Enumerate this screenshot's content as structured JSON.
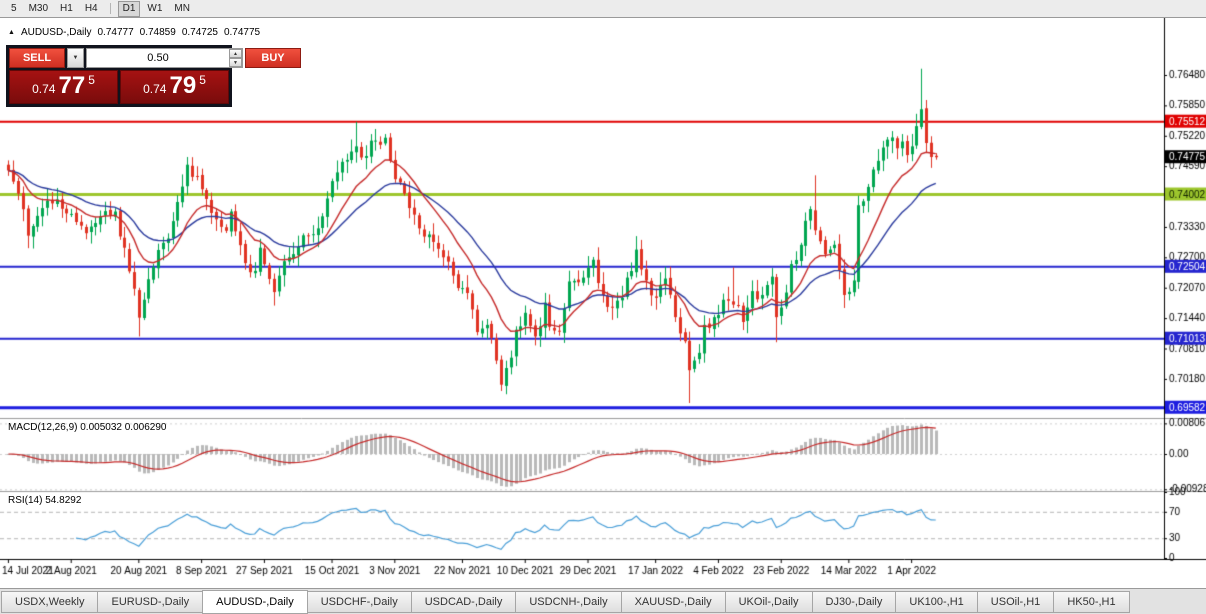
{
  "toolbar": {
    "timeframes": [
      "5",
      "M30",
      "H1",
      "H4",
      "D1",
      "W1",
      "MN"
    ],
    "active": "D1"
  },
  "header": {
    "symbol": "AUDUSD-,Daily",
    "open": "0.74777",
    "high": "0.74859",
    "low": "0.74725",
    "close": "0.74775"
  },
  "icons": {
    "title_marker": "▲",
    "dropdown_arrow": "▼",
    "spin_up": "▲",
    "spin_down": "▼"
  },
  "trade_panel": {
    "sell_label": "SELL",
    "buy_label": "BUY",
    "volume": "0.50",
    "sell_price_main": "0.74",
    "sell_price_big": "77",
    "sell_price_sup": "5",
    "buy_price_main": "0.74",
    "buy_price_big": "79",
    "buy_price_sup": "5"
  },
  "indicators": {
    "macd_label": "MACD(12,26,9) 0.005032 0.006290",
    "rsi_label": "RSI(14) 54.8292"
  },
  "axes": {
    "price_ticks": [
      "0.76480",
      "0.75850",
      "0.75220",
      "0.74590",
      "0.73960",
      "0.73330",
      "0.72700",
      "0.72070",
      "0.71440",
      "0.70810",
      "0.70180"
    ],
    "price_tick_top": 0.7648,
    "price_tick_step": 0.0063,
    "macd_ticks": [
      {
        "value": 0.00806,
        "label": "0.00806"
      },
      {
        "value": 0,
        "label": "0.00"
      },
      {
        "value": -0.00928,
        "label": "-0.00928"
      }
    ],
    "rsi_ticks": [
      {
        "value": 100,
        "label": "100"
      },
      {
        "value": 70,
        "label": "70"
      },
      {
        "value": 30,
        "label": "30"
      },
      {
        "value": 0,
        "label": "0"
      }
    ],
    "dates": [
      "14 Jul 2021",
      "2 Aug 2021",
      "20 Aug 2021",
      "8 Sep 2021",
      "27 Sep 2021",
      "15 Oct 2021",
      "3 Nov 2021",
      "22 Nov 2021",
      "10 Dec 2021",
      "29 Dec 2021",
      "17 Jan 2022",
      "4 Feb 2022",
      "23 Feb 2022",
      "14 Mar 2022",
      "1 Apr 2022"
    ]
  },
  "levels": [
    {
      "price": 0.75512,
      "label": "0.75512",
      "line_color": "#e00000",
      "badge_bg": "#e00000",
      "badge_fg": "#ffffff",
      "width": 2
    },
    {
      "price": 0.74002,
      "label": "0.74002",
      "line_color": "#9dc62d",
      "badge_bg": "#9dc62d",
      "badge_fg": "#102000",
      "width": 3
    },
    {
      "price": 0.72504,
      "label": "0.72504",
      "line_color": "#2525cf",
      "badge_bg": "#2525cf",
      "badge_fg": "#ffffff",
      "width": 2
    },
    {
      "price": 0.71013,
      "label": "0.71013",
      "line_color": "#2525cf",
      "badge_bg": "#2525cf",
      "badge_fg": "#ffffff",
      "width": 2
    },
    {
      "price": 0.69582,
      "label": "0.69582",
      "line_color": "#1d1de0",
      "badge_bg": "#1d1de0",
      "badge_fg": "#ffffff",
      "width": 3
    }
  ],
  "current_price": {
    "price": 0.74775,
    "label": "0.74775",
    "badge_bg": "#000000",
    "badge_fg": "#ffffff"
  },
  "colors": {
    "up": "#00a650",
    "down": "#e03323",
    "ma_fast": "#c62b2b",
    "ma_slow": "#2b3b9e",
    "macd_hist": "#b9b9b9",
    "macd_signal": "#c62b2b",
    "rsi_line": "#4a9fd8",
    "dashed_level": "#b5b5b5",
    "macd_grid": "#d0d0d0",
    "separator": "#9a9a9a",
    "frame": "#000000"
  },
  "chart_data": {
    "type": "candlestick",
    "title": "AUDUSD-,Daily",
    "symbol": "AUDUSD-",
    "timeframe": "Daily",
    "n_candles": 193,
    "price_min": 0.6939,
    "price_max": 0.7762,
    "noise": 0.0016,
    "seed": 11,
    "date_first_index": 0,
    "date_last_index": 187,
    "close_waypoints": [
      [
        0,
        0.745
      ],
      [
        2,
        0.7402
      ],
      [
        4,
        0.7315
      ],
      [
        7,
        0.7372
      ],
      [
        10,
        0.739
      ],
      [
        13,
        0.736
      ],
      [
        16,
        0.732
      ],
      [
        19,
        0.7355
      ],
      [
        22,
        0.7365
      ],
      [
        24,
        0.729
      ],
      [
        26,
        0.7205
      ],
      [
        27,
        0.7145
      ],
      [
        30,
        0.725
      ],
      [
        32,
        0.73
      ],
      [
        34,
        0.7345
      ],
      [
        37,
        0.7462
      ],
      [
        39,
        0.7438
      ],
      [
        42,
        0.7362
      ],
      [
        45,
        0.7325
      ],
      [
        46,
        0.7365
      ],
      [
        49,
        0.7258
      ],
      [
        51,
        0.7242
      ],
      [
        52,
        0.729
      ],
      [
        55,
        0.7198
      ],
      [
        56,
        0.7232
      ],
      [
        57,
        0.7262
      ],
      [
        60,
        0.7292
      ],
      [
        62,
        0.7315
      ],
      [
        65,
        0.7355
      ],
      [
        67,
        0.7428
      ],
      [
        70,
        0.7472
      ],
      [
        72,
        0.75
      ],
      [
        74,
        0.748
      ],
      [
        76,
        0.7512
      ],
      [
        78,
        0.7518
      ],
      [
        80,
        0.7432
      ],
      [
        82,
        0.7402
      ],
      [
        85,
        0.733
      ],
      [
        88,
        0.7302
      ],
      [
        90,
        0.727
      ],
      [
        92,
        0.7232
      ],
      [
        95,
        0.7196
      ],
      [
        97,
        0.7115
      ],
      [
        99,
        0.713
      ],
      [
        101,
        0.7056
      ],
      [
        102,
        0.7006
      ],
      [
        104,
        0.7062
      ],
      [
        105,
        0.712
      ],
      [
        107,
        0.7155
      ],
      [
        109,
        0.7106
      ],
      [
        111,
        0.7176
      ],
      [
        112,
        0.7126
      ],
      [
        114,
        0.7116
      ],
      [
        116,
        0.722
      ],
      [
        119,
        0.7228
      ],
      [
        121,
        0.7265
      ],
      [
        123,
        0.7192
      ],
      [
        125,
        0.7166
      ],
      [
        127,
        0.7186
      ],
      [
        130,
        0.7286
      ],
      [
        132,
        0.7222
      ],
      [
        134,
        0.7186
      ],
      [
        136,
        0.7226
      ],
      [
        138,
        0.7146
      ],
      [
        140,
        0.7096
      ],
      [
        141,
        0.7036
      ],
      [
        143,
        0.7072
      ],
      [
        144,
        0.713
      ],
      [
        146,
        0.7146
      ],
      [
        149,
        0.718
      ],
      [
        150,
        0.7172
      ],
      [
        152,
        0.7136
      ],
      [
        154,
        0.72
      ],
      [
        156,
        0.7192
      ],
      [
        158,
        0.723
      ],
      [
        159,
        0.7146
      ],
      [
        160,
        0.7166
      ],
      [
        162,
        0.7256
      ],
      [
        164,
        0.7296
      ],
      [
        166,
        0.737
      ],
      [
        167,
        0.7326
      ],
      [
        169,
        0.7276
      ],
      [
        171,
        0.7296
      ],
      [
        173,
        0.7192
      ],
      [
        175,
        0.7222
      ],
      [
        176,
        0.7378
      ],
      [
        178,
        0.7416
      ],
      [
        180,
        0.747
      ],
      [
        182,
        0.7514
      ],
      [
        184,
        0.7496
      ],
      [
        185,
        0.751
      ],
      [
        186,
        0.7482
      ],
      [
        187,
        0.75
      ],
      [
        188,
        0.7542
      ],
      [
        189,
        0.7577
      ],
      [
        190,
        0.7507
      ],
      [
        191,
        0.7478
      ],
      [
        192,
        0.74775
      ]
    ],
    "forced_extremes": [
      {
        "i": 4,
        "low": 0.7289
      },
      {
        "i": 27,
        "low": 0.7106
      },
      {
        "i": 37,
        "high": 0.7478
      },
      {
        "i": 55,
        "low": 0.717
      },
      {
        "i": 72,
        "high": 0.7551
      },
      {
        "i": 76,
        "high": 0.7536
      },
      {
        "i": 102,
        "low": 0.6993
      },
      {
        "i": 130,
        "high": 0.7314
      },
      {
        "i": 141,
        "low": 0.6968
      },
      {
        "i": 150,
        "high": 0.7249
      },
      {
        "i": 159,
        "low": 0.7094
      },
      {
        "i": 167,
        "high": 0.744
      },
      {
        "i": 173,
        "low": 0.7165
      },
      {
        "i": 189,
        "high": 0.7661
      },
      {
        "i": 192,
        "high": 0.74859,
        "low": 0.74725
      }
    ],
    "moving_averages": [
      {
        "type": "ema",
        "period": 12,
        "color_key": "ma_fast"
      },
      {
        "type": "ema",
        "period": 26,
        "color_key": "ma_slow"
      }
    ],
    "macd": {
      "fast": 12,
      "slow": 26,
      "signal": 9,
      "value": 0.005032,
      "signal_value": 0.00629
    },
    "rsi": {
      "period": 14,
      "value": 54.8292
    },
    "horizontal_lines": [
      0.75512,
      0.74002,
      0.72504,
      0.71013,
      0.69582
    ]
  },
  "tabs": [
    {
      "label": "USDX,Weekly",
      "active": false
    },
    {
      "label": "EURUSD-,Daily",
      "active": false
    },
    {
      "label": "AUDUSD-,Daily",
      "active": true
    },
    {
      "label": "USDCHF-,Daily",
      "active": false
    },
    {
      "label": "USDCAD-,Daily",
      "active": false
    },
    {
      "label": "USDCNH-,Daily",
      "active": false
    },
    {
      "label": "XAUUSD-,Daily",
      "active": false
    },
    {
      "label": "UKOil-,Daily",
      "active": false
    },
    {
      "label": "DJ30-,Daily",
      "active": false
    },
    {
      "label": "UK100-,H1",
      "active": false
    },
    {
      "label": "USOil-,H1",
      "active": false
    },
    {
      "label": "HK50-,H1",
      "active": false
    }
  ]
}
